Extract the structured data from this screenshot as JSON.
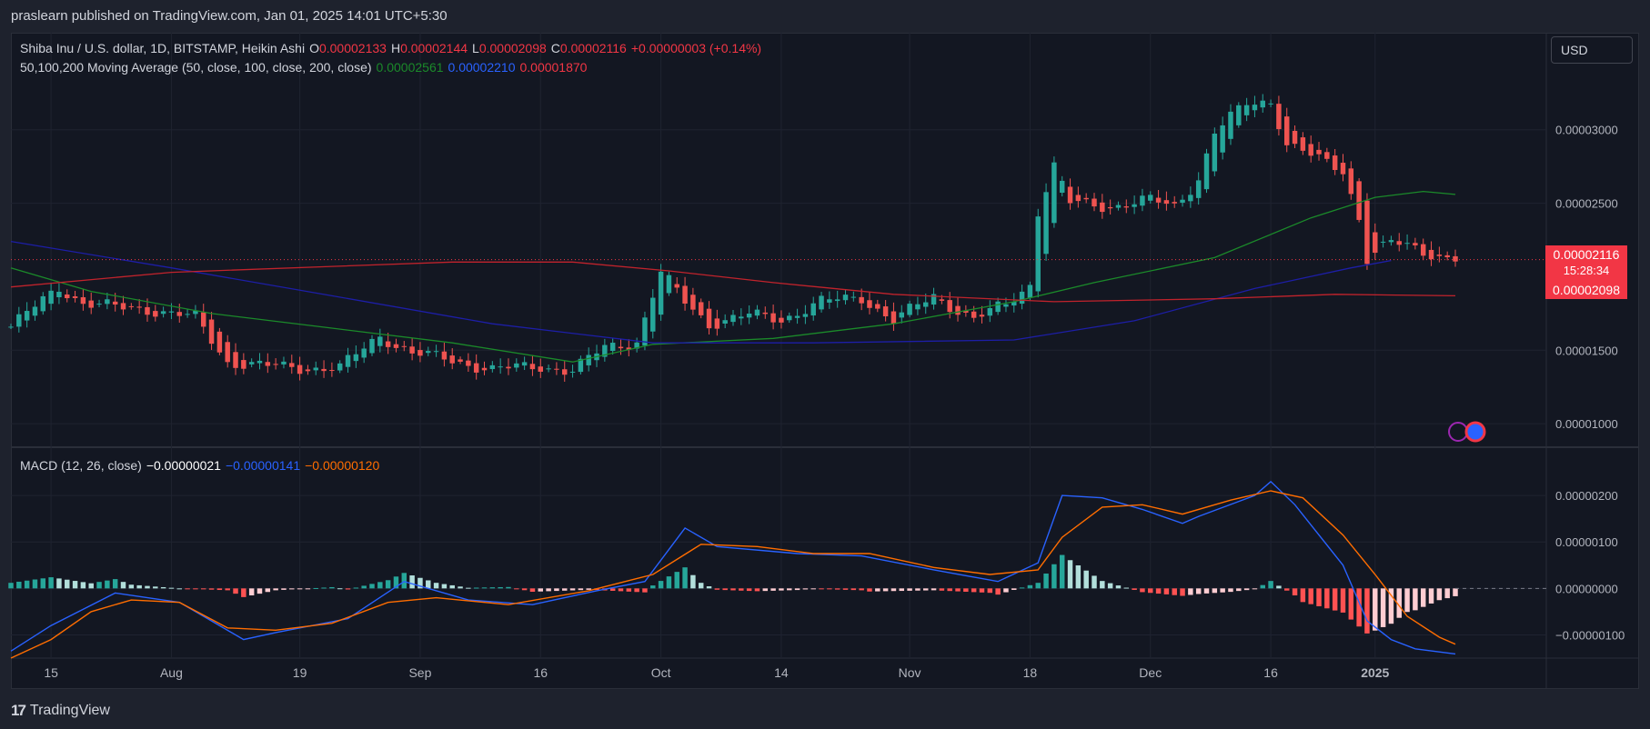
{
  "header": {
    "published": "praslearn published on TradingView.com, Jan 01, 2025 14:01 UTC+5:30"
  },
  "legend": {
    "symbol": "Shiba Inu / U.S. dollar, 1D, BITSTAMP, Heikin Ashi",
    "o_label": "O",
    "o_value": "0.00002133",
    "h_label": "H",
    "h_value": "0.00002144",
    "l_label": "L",
    "l_value": "0.00002098",
    "c_label": "C",
    "c_value": "0.00002116",
    "change": "+0.00000003 (+0.14%)",
    "ma_label": "50,100,200 Moving Average (50, close, 100, close, 200, close)",
    "ma50": "0.00002561",
    "ma100": "0.00002210",
    "ma200": "0.00001870",
    "macd_label": "MACD (12, 26, close)",
    "macd_hist": "−0.00000021",
    "macd_line": "−0.00000141",
    "macd_signal": "−0.00000120"
  },
  "currency": "USD",
  "price_tag": {
    "last": "0.00002116",
    "countdown": "15:28:34",
    "low": "0.00002098"
  },
  "footer": {
    "brand": "TradingView"
  },
  "colors": {
    "up": "#26a69a",
    "down": "#ef5350",
    "ma50": "#1b8a2a",
    "ma100": "#1d1ea6",
    "ma200": "#c1232c",
    "macd": "#2962ff",
    "signal": "#ff6d00",
    "hist_up_strong": "#26a69a",
    "hist_up_weak": "#b2dfdb",
    "hist_down_strong": "#ff5252",
    "hist_down_weak": "#ffcdd2"
  },
  "chart_data": [
    {
      "type": "candlestick",
      "title": "Shiba Inu / U.S. dollar, 1D, BITSTAMP, Heikin Ashi",
      "x_ticks": [
        "15",
        "Aug",
        "19",
        "Sep",
        "16",
        "Oct",
        "14",
        "Nov",
        "18",
        "Dec",
        "16",
        "2025"
      ],
      "y_ticks": [
        "0.00003000",
        "0.00002500",
        "0.00001500",
        "0.00001000"
      ],
      "ylim": [
        8.4e-06,
        3.66e-05
      ],
      "xlim_days": [
        0,
        180
      ],
      "anchors": [
        {
          "day": 0,
          "price": 1.66e-05
        },
        {
          "day": 6,
          "price": 1.93e-05
        },
        {
          "day": 9,
          "price": 1.82e-05
        },
        {
          "day": 13,
          "price": 1.79e-05
        },
        {
          "day": 17,
          "price": 1.78e-05
        },
        {
          "day": 23,
          "price": 1.72e-05
        },
        {
          "day": 27,
          "price": 1.42e-05
        },
        {
          "day": 32,
          "price": 1.39e-05
        },
        {
          "day": 36,
          "price": 1.38e-05
        },
        {
          "day": 41,
          "price": 1.38e-05
        },
        {
          "day": 46,
          "price": 1.6e-05
        },
        {
          "day": 50,
          "price": 1.48e-05
        },
        {
          "day": 55,
          "price": 1.43e-05
        },
        {
          "day": 60,
          "price": 1.37e-05
        },
        {
          "day": 66,
          "price": 1.39e-05
        },
        {
          "day": 70,
          "price": 1.36e-05
        },
        {
          "day": 74,
          "price": 1.52e-05
        },
        {
          "day": 78,
          "price": 1.56e-05
        },
        {
          "day": 81,
          "price": 2.03e-05
        },
        {
          "day": 84,
          "price": 1.83e-05
        },
        {
          "day": 87,
          "price": 1.68e-05
        },
        {
          "day": 92,
          "price": 1.74e-05
        },
        {
          "day": 96,
          "price": 1.71e-05
        },
        {
          "day": 101,
          "price": 1.83e-05
        },
        {
          "day": 106,
          "price": 1.86e-05
        },
        {
          "day": 110,
          "price": 1.7e-05
        },
        {
          "day": 115,
          "price": 1.87e-05
        },
        {
          "day": 120,
          "price": 1.71e-05
        },
        {
          "day": 124,
          "price": 1.81e-05
        },
        {
          "day": 127,
          "price": 1.95e-05
        },
        {
          "day": 128,
          "price": 2.45e-05
        },
        {
          "day": 130,
          "price": 2.75e-05
        },
        {
          "day": 132,
          "price": 2.5e-05
        },
        {
          "day": 137,
          "price": 2.48e-05
        },
        {
          "day": 142,
          "price": 2.52e-05
        },
        {
          "day": 145,
          "price": 2.48e-05
        },
        {
          "day": 148,
          "price": 2.67e-05
        },
        {
          "day": 150,
          "price": 2.98e-05
        },
        {
          "day": 154,
          "price": 3.18e-05
        },
        {
          "day": 157,
          "price": 3.2e-05
        },
        {
          "day": 159,
          "price": 2.9e-05
        },
        {
          "day": 162,
          "price": 2.82e-05
        },
        {
          "day": 166,
          "price": 2.73e-05
        },
        {
          "day": 168,
          "price": 2.4e-05
        },
        {
          "day": 169,
          "price": 2.12e-05
        },
        {
          "day": 172,
          "price": 2.23e-05
        },
        {
          "day": 175,
          "price": 2.2e-05
        },
        {
          "day": 178,
          "price": 2.14e-05
        },
        {
          "day": 180,
          "price": 2.12e-05
        }
      ],
      "moving_averages": [
        {
          "name": "MA 50",
          "points": [
            [
              0,
              2.06e-05
            ],
            [
              10,
              1.9e-05
            ],
            [
              25,
              1.75e-05
            ],
            [
              40,
              1.65e-05
            ],
            [
              55,
              1.55e-05
            ],
            [
              70,
              1.42e-05
            ],
            [
              80,
              1.54e-05
            ],
            [
              95,
              1.58e-05
            ],
            [
              110,
              1.68e-05
            ],
            [
              125,
              1.83e-05
            ],
            [
              135,
              1.96e-05
            ],
            [
              150,
              2.13e-05
            ],
            [
              162,
              2.4e-05
            ],
            [
              170,
              2.54e-05
            ],
            [
              176,
              2.58e-05
            ],
            [
              180,
              2.56e-05
            ]
          ]
        },
        {
          "name": "MA 100",
          "points": [
            [
              0,
              2.24e-05
            ],
            [
              20,
              2.06e-05
            ],
            [
              40,
              1.87e-05
            ],
            [
              60,
              1.68e-05
            ],
            [
              80,
              1.55e-05
            ],
            [
              100,
              1.55e-05
            ],
            [
              125,
              1.57e-05
            ],
            [
              140,
              1.7e-05
            ],
            [
              155,
              1.92e-05
            ],
            [
              167,
              2.06e-05
            ],
            [
              172,
              2.11e-05
            ]
          ]
        },
        {
          "name": "MA 200",
          "points": [
            [
              0,
              1.93e-05
            ],
            [
              20,
              2.03e-05
            ],
            [
              40,
              2.07e-05
            ],
            [
              55,
              2.1e-05
            ],
            [
              70,
              2.1e-05
            ],
            [
              82,
              2.04e-05
            ],
            [
              95,
              1.96e-05
            ],
            [
              110,
              1.88e-05
            ],
            [
              130,
              1.83e-05
            ],
            [
              150,
              1.85e-05
            ],
            [
              165,
              1.88e-05
            ],
            [
              180,
              1.87e-05
            ]
          ]
        }
      ],
      "last_price": 2.116e-05
    },
    {
      "type": "line",
      "title": "MACD (12, 26, close)",
      "y_ticks": [
        "0.00000200",
        "0.00000100",
        "0.00000000",
        "−0.00000100"
      ],
      "ylim": [
        -1.5e-06,
        3e-06
      ],
      "series": [
        {
          "name": "MACD",
          "points": [
            [
              0,
              -1.35
            ],
            [
              5,
              -0.8
            ],
            [
              13,
              -0.1
            ],
            [
              21,
              -0.3
            ],
            [
              29,
              -1.1
            ],
            [
              33,
              -0.95
            ],
            [
              42,
              -0.65
            ],
            [
              49,
              0.15
            ],
            [
              57,
              -0.25
            ],
            [
              65,
              -0.35
            ],
            [
              73,
              -0.05
            ],
            [
              79,
              0.15
            ],
            [
              84,
              1.3
            ],
            [
              88,
              0.9
            ],
            [
              98,
              0.75
            ],
            [
              106,
              0.7
            ],
            [
              115,
              0.4
            ],
            [
              123,
              0.15
            ],
            [
              128,
              0.55
            ],
            [
              131,
              2.0
            ],
            [
              136,
              1.95
            ],
            [
              141,
              1.7
            ],
            [
              146,
              1.4
            ],
            [
              148,
              1.55
            ],
            [
              155,
              2.0
            ],
            [
              157,
              2.3
            ],
            [
              160,
              1.8
            ],
            [
              166,
              0.5
            ],
            [
              169,
              -0.7
            ],
            [
              172,
              -1.1
            ],
            [
              175,
              -1.3
            ],
            [
              180,
              -1.41
            ]
          ]
        },
        {
          "name": "Signal",
          "points": [
            [
              0,
              -1.5
            ],
            [
              5,
              -1.1
            ],
            [
              10,
              -0.5
            ],
            [
              15,
              -0.25
            ],
            [
              21,
              -0.3
            ],
            [
              27,
              -0.85
            ],
            [
              33,
              -0.9
            ],
            [
              40,
              -0.75
            ],
            [
              47,
              -0.3
            ],
            [
              53,
              -0.2
            ],
            [
              62,
              -0.35
            ],
            [
              72,
              -0.05
            ],
            [
              80,
              0.3
            ],
            [
              86,
              0.95
            ],
            [
              93,
              0.9
            ],
            [
              100,
              0.75
            ],
            [
              107,
              0.75
            ],
            [
              115,
              0.45
            ],
            [
              122,
              0.3
            ],
            [
              128,
              0.4
            ],
            [
              131,
              1.1
            ],
            [
              136,
              1.75
            ],
            [
              141,
              1.8
            ],
            [
              146,
              1.6
            ],
            [
              152,
              1.9
            ],
            [
              157,
              2.1
            ],
            [
              161,
              1.95
            ],
            [
              166,
              1.15
            ],
            [
              170,
              0.3
            ],
            [
              174,
              -0.6
            ],
            [
              178,
              -1.05
            ],
            [
              180,
              -1.2
            ]
          ]
        }
      ]
    }
  ]
}
